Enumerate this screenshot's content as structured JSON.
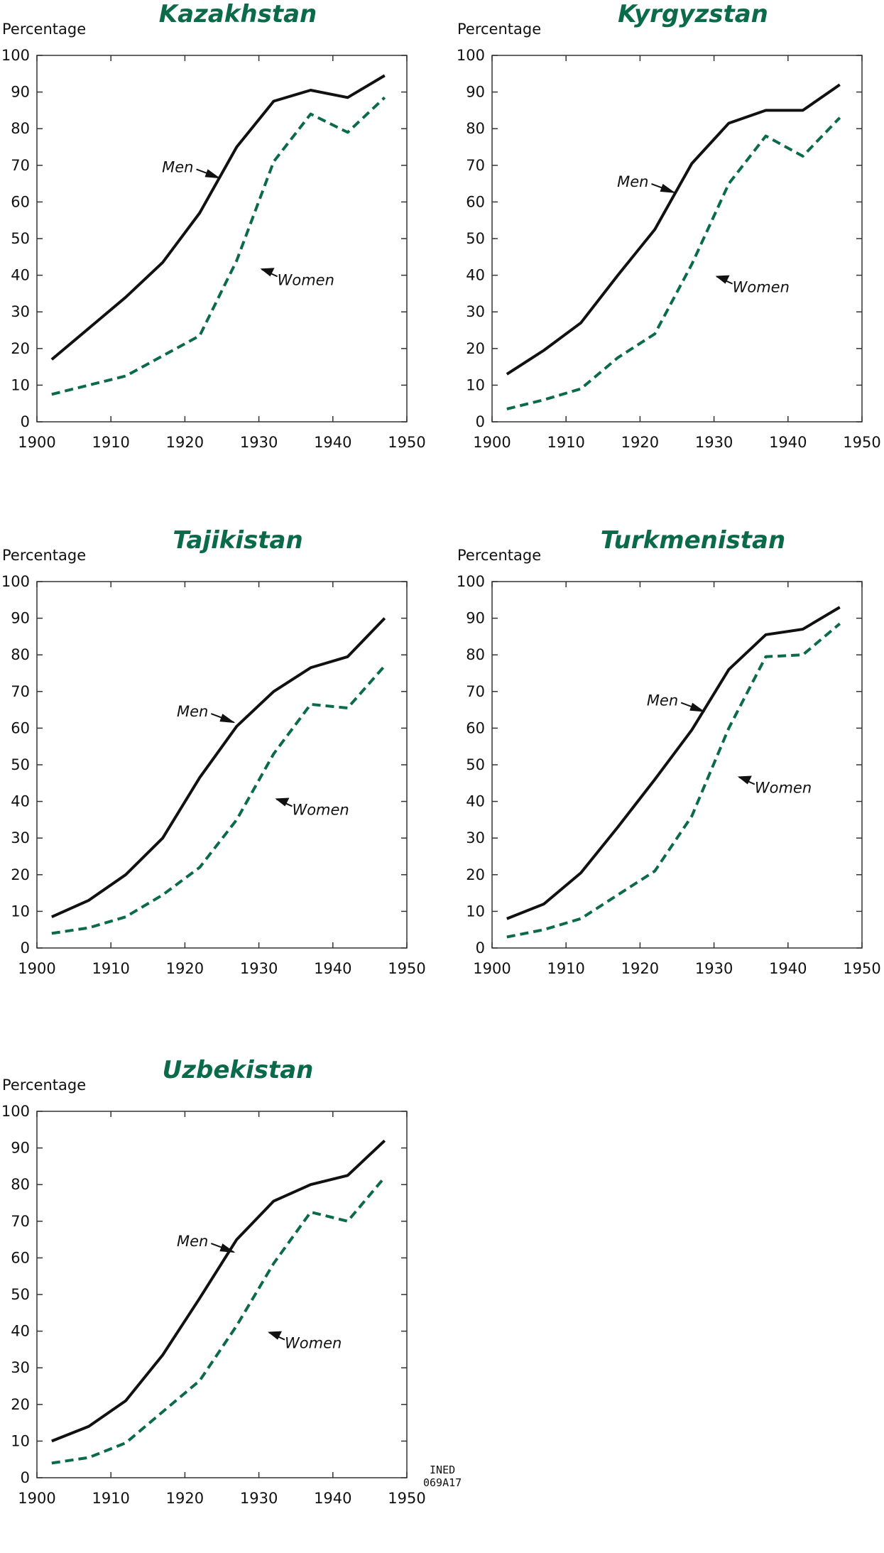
{
  "y_axis_label": "Percentage",
  "legend": {
    "men": "Men",
    "women": "Women"
  },
  "colors": {
    "men": "#111111",
    "women": "#0a6a4a",
    "title": "#0a6a4a"
  },
  "credit": {
    "line1": "INED",
    "line2": "069A17"
  },
  "chart_data": [
    {
      "type": "line",
      "title": "Kazakhstan",
      "ylabel": "Percentage",
      "x_ticks": [
        1900,
        1910,
        1920,
        1930,
        1940,
        1950
      ],
      "y_ticks": [
        0,
        10,
        20,
        30,
        40,
        50,
        60,
        70,
        80,
        90,
        100
      ],
      "xlim": [
        1900,
        1950
      ],
      "ylim": [
        0,
        100
      ],
      "x": [
        1902,
        1907,
        1912,
        1917,
        1922,
        1927,
        1932,
        1937,
        1942,
        1947
      ],
      "series": [
        {
          "name": "Men",
          "style": "solid",
          "values": [
            17,
            25.5,
            34,
            43.5,
            57,
            75,
            87.5,
            90.5,
            88.5,
            94.5
          ]
        },
        {
          "name": "Women",
          "style": "dashed",
          "values": [
            7.5,
            10,
            12.5,
            18,
            23.5,
            44,
            71,
            84,
            79,
            88.5
          ]
        }
      ]
    },
    {
      "type": "line",
      "title": "Kyrgyzstan",
      "ylabel": "Percentage",
      "x_ticks": [
        1900,
        1910,
        1920,
        1930,
        1940,
        1950
      ],
      "y_ticks": [
        0,
        10,
        20,
        30,
        40,
        50,
        60,
        70,
        80,
        90,
        100
      ],
      "xlim": [
        1900,
        1950
      ],
      "ylim": [
        0,
        100
      ],
      "x": [
        1902,
        1907,
        1912,
        1917,
        1922,
        1927,
        1932,
        1937,
        1942,
        1947
      ],
      "series": [
        {
          "name": "Men",
          "style": "solid",
          "values": [
            13,
            19.5,
            27,
            40,
            52.5,
            70.5,
            81.5,
            85,
            85,
            92
          ]
        },
        {
          "name": "Women",
          "style": "dashed",
          "values": [
            3.5,
            6,
            9,
            17.5,
            24,
            43,
            65,
            78,
            72.5,
            83
          ]
        }
      ]
    },
    {
      "type": "line",
      "title": "Tajikistan",
      "ylabel": "Percentage",
      "x_ticks": [
        1900,
        1910,
        1920,
        1930,
        1940,
        1950
      ],
      "y_ticks": [
        0,
        10,
        20,
        30,
        40,
        50,
        60,
        70,
        80,
        90,
        100
      ],
      "xlim": [
        1900,
        1950
      ],
      "ylim": [
        0,
        100
      ],
      "x": [
        1902,
        1907,
        1912,
        1917,
        1922,
        1927,
        1932,
        1937,
        1942,
        1947
      ],
      "series": [
        {
          "name": "Men",
          "style": "solid",
          "values": [
            8.5,
            13,
            20,
            30,
            46.5,
            60.5,
            70,
            76.5,
            79.5,
            90
          ]
        },
        {
          "name": "Women",
          "style": "dashed",
          "values": [
            4,
            5.5,
            8.5,
            14.5,
            22,
            35,
            53,
            66.5,
            65.5,
            77
          ]
        }
      ]
    },
    {
      "type": "line",
      "title": "Turkmenistan",
      "ylabel": "Percentage",
      "x_ticks": [
        1900,
        1910,
        1920,
        1930,
        1940,
        1950
      ],
      "y_ticks": [
        0,
        10,
        20,
        30,
        40,
        50,
        60,
        70,
        80,
        90,
        100
      ],
      "xlim": [
        1900,
        1950
      ],
      "ylim": [
        0,
        100
      ],
      "x": [
        1902,
        1907,
        1912,
        1917,
        1922,
        1927,
        1932,
        1937,
        1942,
        1947
      ],
      "series": [
        {
          "name": "Men",
          "style": "solid",
          "values": [
            8,
            12,
            20.5,
            33,
            46,
            59.5,
            76,
            85.5,
            87,
            93
          ]
        },
        {
          "name": "Women",
          "style": "dashed",
          "values": [
            3,
            5,
            8,
            14.5,
            21,
            36,
            60,
            79.5,
            80,
            88.5
          ]
        }
      ]
    },
    {
      "type": "line",
      "title": "Uzbekistan",
      "ylabel": "Percentage",
      "x_ticks": [
        1900,
        1910,
        1920,
        1930,
        1940,
        1950
      ],
      "y_ticks": [
        0,
        10,
        20,
        30,
        40,
        50,
        60,
        70,
        80,
        90,
        100
      ],
      "xlim": [
        1900,
        1950
      ],
      "ylim": [
        0,
        100
      ],
      "x": [
        1902,
        1907,
        1912,
        1917,
        1922,
        1927,
        1932,
        1937,
        1942,
        1947
      ],
      "series": [
        {
          "name": "Men",
          "style": "solid",
          "values": [
            10,
            14,
            21,
            33.5,
            49,
            65,
            75.5,
            80,
            82.5,
            92
          ]
        },
        {
          "name": "Women",
          "style": "dashed",
          "values": [
            4,
            5.5,
            9.5,
            18,
            26.5,
            41.5,
            58.5,
            72.5,
            70,
            82
          ]
        }
      ]
    }
  ]
}
